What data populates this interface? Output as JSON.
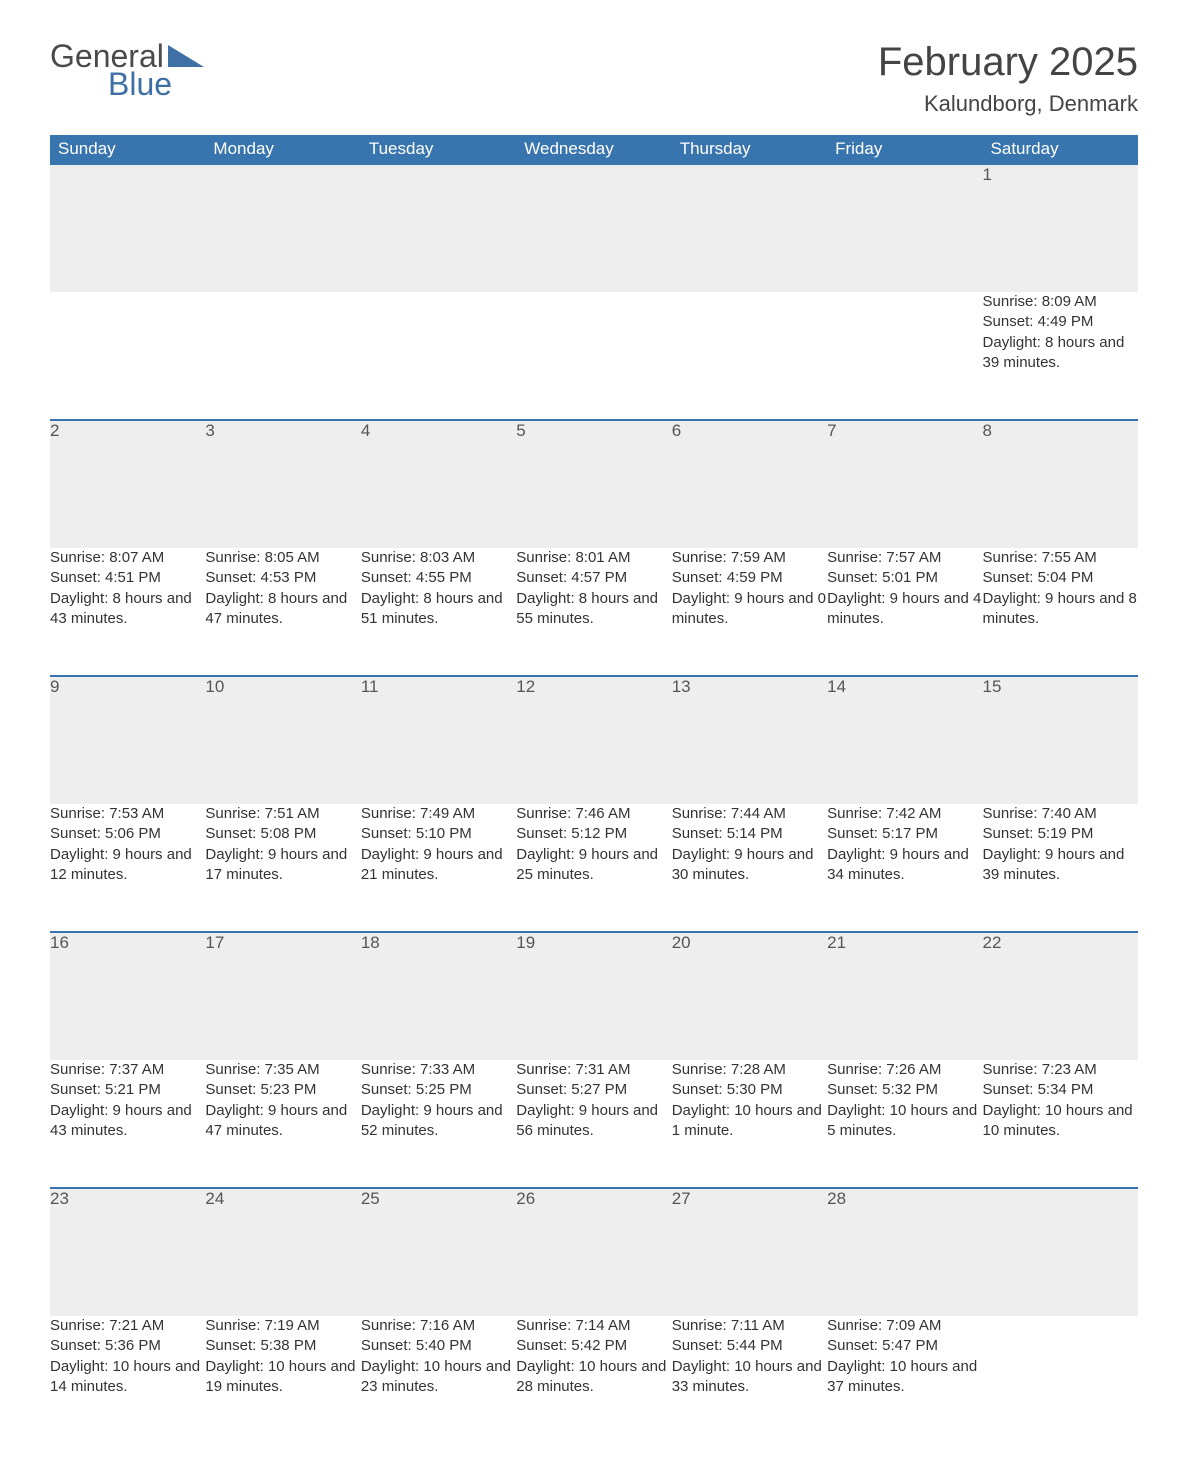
{
  "brand": {
    "word1": "General",
    "word2": "Blue"
  },
  "header": {
    "month_title": "February 2025",
    "location": "Kalundborg, Denmark"
  },
  "colors": {
    "header_bg": "#3874ad",
    "header_text": "#ffffff",
    "daynum_bg": "#eeeeee",
    "row_border": "#3874ad",
    "body_text": "#333333",
    "title_text": "#444444",
    "logo_color": "#3e70a6"
  },
  "calendar": {
    "weekdays": [
      "Sunday",
      "Monday",
      "Tuesday",
      "Wednesday",
      "Thursday",
      "Friday",
      "Saturday"
    ],
    "weeks": [
      {
        "days": [
          null,
          null,
          null,
          null,
          null,
          null,
          {
            "n": "1",
            "sunrise": "8:09 AM",
            "sunset": "4:49 PM",
            "daylight": "8 hours and 39 minutes."
          }
        ]
      },
      {
        "days": [
          {
            "n": "2",
            "sunrise": "8:07 AM",
            "sunset": "4:51 PM",
            "daylight": "8 hours and 43 minutes."
          },
          {
            "n": "3",
            "sunrise": "8:05 AM",
            "sunset": "4:53 PM",
            "daylight": "8 hours and 47 minutes."
          },
          {
            "n": "4",
            "sunrise": "8:03 AM",
            "sunset": "4:55 PM",
            "daylight": "8 hours and 51 minutes."
          },
          {
            "n": "5",
            "sunrise": "8:01 AM",
            "sunset": "4:57 PM",
            "daylight": "8 hours and 55 minutes."
          },
          {
            "n": "6",
            "sunrise": "7:59 AM",
            "sunset": "4:59 PM",
            "daylight": "9 hours and 0 minutes."
          },
          {
            "n": "7",
            "sunrise": "7:57 AM",
            "sunset": "5:01 PM",
            "daylight": "9 hours and 4 minutes."
          },
          {
            "n": "8",
            "sunrise": "7:55 AM",
            "sunset": "5:04 PM",
            "daylight": "9 hours and 8 minutes."
          }
        ]
      },
      {
        "days": [
          {
            "n": "9",
            "sunrise": "7:53 AM",
            "sunset": "5:06 PM",
            "daylight": "9 hours and 12 minutes."
          },
          {
            "n": "10",
            "sunrise": "7:51 AM",
            "sunset": "5:08 PM",
            "daylight": "9 hours and 17 minutes."
          },
          {
            "n": "11",
            "sunrise": "7:49 AM",
            "sunset": "5:10 PM",
            "daylight": "9 hours and 21 minutes."
          },
          {
            "n": "12",
            "sunrise": "7:46 AM",
            "sunset": "5:12 PM",
            "daylight": "9 hours and 25 minutes."
          },
          {
            "n": "13",
            "sunrise": "7:44 AM",
            "sunset": "5:14 PM",
            "daylight": "9 hours and 30 minutes."
          },
          {
            "n": "14",
            "sunrise": "7:42 AM",
            "sunset": "5:17 PM",
            "daylight": "9 hours and 34 minutes."
          },
          {
            "n": "15",
            "sunrise": "7:40 AM",
            "sunset": "5:19 PM",
            "daylight": "9 hours and 39 minutes."
          }
        ]
      },
      {
        "days": [
          {
            "n": "16",
            "sunrise": "7:37 AM",
            "sunset": "5:21 PM",
            "daylight": "9 hours and 43 minutes."
          },
          {
            "n": "17",
            "sunrise": "7:35 AM",
            "sunset": "5:23 PM",
            "daylight": "9 hours and 47 minutes."
          },
          {
            "n": "18",
            "sunrise": "7:33 AM",
            "sunset": "5:25 PM",
            "daylight": "9 hours and 52 minutes."
          },
          {
            "n": "19",
            "sunrise": "7:31 AM",
            "sunset": "5:27 PM",
            "daylight": "9 hours and 56 minutes."
          },
          {
            "n": "20",
            "sunrise": "7:28 AM",
            "sunset": "5:30 PM",
            "daylight": "10 hours and 1 minute."
          },
          {
            "n": "21",
            "sunrise": "7:26 AM",
            "sunset": "5:32 PM",
            "daylight": "10 hours and 5 minutes."
          },
          {
            "n": "22",
            "sunrise": "7:23 AM",
            "sunset": "5:34 PM",
            "daylight": "10 hours and 10 minutes."
          }
        ]
      },
      {
        "days": [
          {
            "n": "23",
            "sunrise": "7:21 AM",
            "sunset": "5:36 PM",
            "daylight": "10 hours and 14 minutes."
          },
          {
            "n": "24",
            "sunrise": "7:19 AM",
            "sunset": "5:38 PM",
            "daylight": "10 hours and 19 minutes."
          },
          {
            "n": "25",
            "sunrise": "7:16 AM",
            "sunset": "5:40 PM",
            "daylight": "10 hours and 23 minutes."
          },
          {
            "n": "26",
            "sunrise": "7:14 AM",
            "sunset": "5:42 PM",
            "daylight": "10 hours and 28 minutes."
          },
          {
            "n": "27",
            "sunrise": "7:11 AM",
            "sunset": "5:44 PM",
            "daylight": "10 hours and 33 minutes."
          },
          {
            "n": "28",
            "sunrise": "7:09 AM",
            "sunset": "5:47 PM",
            "daylight": "10 hours and 37 minutes."
          },
          null
        ]
      }
    ],
    "labels": {
      "sunrise_prefix": "Sunrise: ",
      "sunset_prefix": "Sunset: ",
      "daylight_prefix": "Daylight: "
    }
  }
}
